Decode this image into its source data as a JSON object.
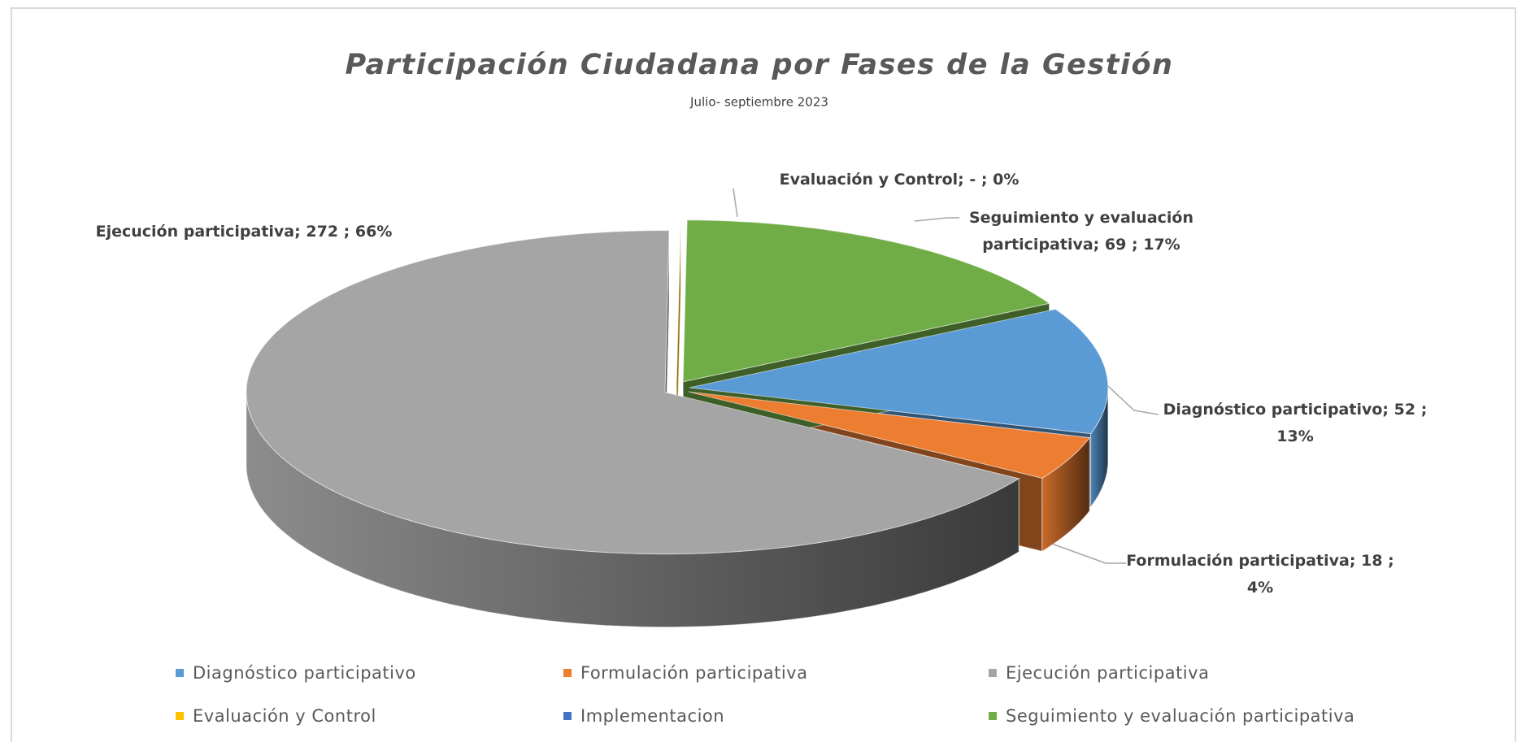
{
  "chart_data": {
    "type": "pie",
    "three_d": true,
    "title": "Participación Ciudadana por Fases de la Gestión",
    "subtitle": "Julio- septiembre 2023",
    "categories": [
      "Diagnóstico participativo",
      "Formulación participativa",
      "Ejecución participativa",
      "Evaluación y Control",
      "Implementacion",
      "Seguimiento y evaluación participativa"
    ],
    "values": [
      52,
      18,
      272,
      0,
      null,
      69
    ],
    "value_labels": [
      "52",
      "18",
      "272",
      "-",
      null,
      "69"
    ],
    "percent_labels": [
      "13%",
      "4%",
      "66%",
      "0%",
      null,
      "17%"
    ],
    "label_separator": ";",
    "colors": [
      "#5b9bd5",
      "#ed7d31",
      "#a5a5a5",
      "#ffc000",
      "#4472c4",
      "#70ad47"
    ],
    "legend": "bottom"
  }
}
